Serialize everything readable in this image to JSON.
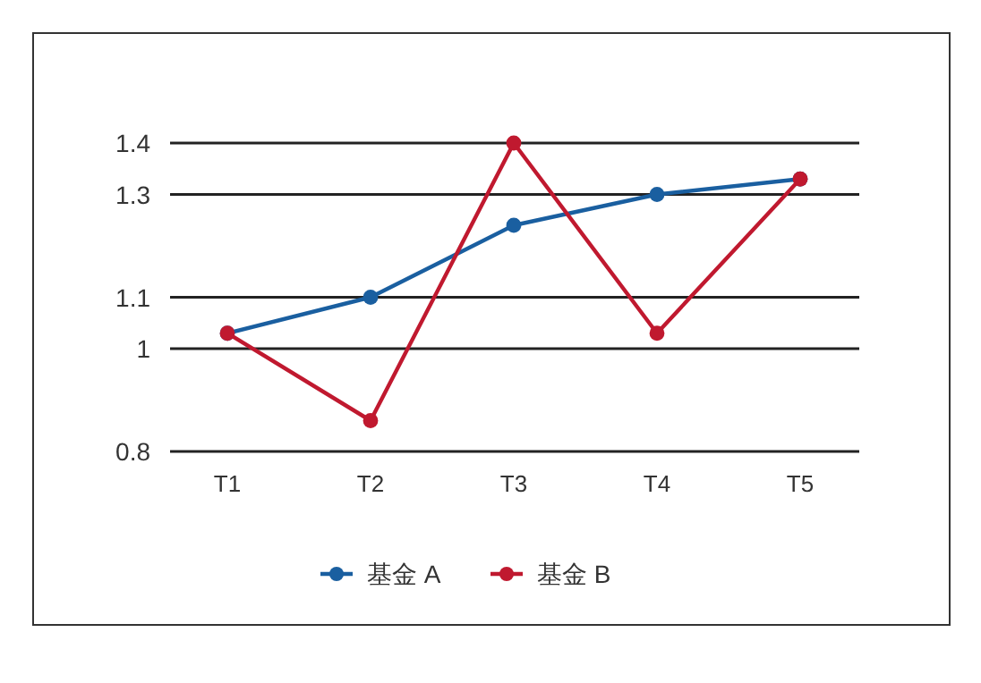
{
  "chart_data": {
    "type": "line",
    "categories": [
      "T1",
      "T2",
      "T3",
      "T4",
      "T5"
    ],
    "series": [
      {
        "name": "基金 A",
        "color": "#1a5fa0",
        "values": [
          1.03,
          1.1,
          1.24,
          1.3,
          1.33
        ]
      },
      {
        "name": "基金 B",
        "color": "#c0192f",
        "values": [
          1.03,
          0.86,
          1.4,
          1.03,
          1.33
        ]
      }
    ],
    "ylim": [
      0.8,
      1.4
    ],
    "yticks": [
      0.8,
      1,
      1.1,
      1.3,
      1.4
    ],
    "grid": "y",
    "legend": "bottom",
    "marker": "circle",
    "line_style": "solid"
  }
}
